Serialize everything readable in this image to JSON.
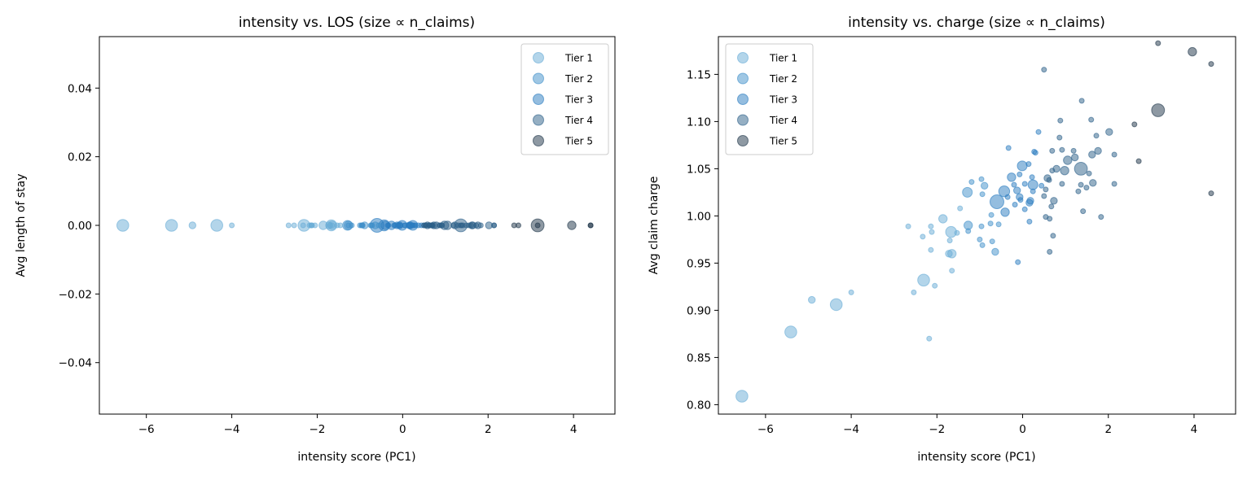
{
  "chart_data": [
    {
      "type": "scatter",
      "title": "intensity vs. LOS (size ∝ n_claims)",
      "xlabel": "intensity score (PC1)",
      "ylabel": "Avg length of stay",
      "xlim": [
        -7.1,
        4.97
      ],
      "ylim": [
        -0.055,
        0.055
      ],
      "xticks": [
        -6,
        -4,
        -2,
        0,
        2,
        4
      ],
      "xtick_labels": [
        "−6",
        "−4",
        "−2",
        "0",
        "2",
        "4"
      ],
      "yticks": [
        -0.04,
        -0.02,
        0,
        0.02,
        0.04
      ],
      "ytick_labels": [
        "−0.04",
        "−0.02",
        "0.00",
        "0.02",
        "0.04"
      ],
      "y_field": "los",
      "legend_position": "top-right",
      "grid": false
    },
    {
      "type": "scatter",
      "title": "intensity vs. charge (size ∝ n_claims)",
      "xlabel": "intensity score (PC1)",
      "ylabel": "Avg claim charge",
      "xlim": [
        -7.1,
        4.97
      ],
      "ylim": [
        0.79,
        1.19
      ],
      "xticks": [
        -6,
        -4,
        -2,
        0,
        2,
        4
      ],
      "xtick_labels": [
        "−6",
        "−4",
        "−2",
        "0",
        "2",
        "4"
      ],
      "yticks": [
        0.8,
        0.85,
        0.9,
        0.95,
        1.0,
        1.05,
        1.1,
        1.15
      ],
      "ytick_labels": [
        "0.80",
        "0.85",
        "0.90",
        "0.95",
        "1.00",
        "1.05",
        "1.10",
        "1.15"
      ],
      "y_field": "charge",
      "legend_position": "top-left",
      "grid": false
    }
  ],
  "legend": [
    "Tier 1",
    "Tier 2",
    "Tier 3",
    "Tier 4",
    "Tier 5"
  ],
  "tier_colors": [
    "#68acd6",
    "#3f8fca",
    "#2a7bbf",
    "#2b5f88",
    "#1d3347"
  ],
  "point_fields": [
    "intensity",
    "charge",
    "n_claims_rel",
    "tier"
  ],
  "los_value_all_points": 0,
  "points": [
    [
      3.16,
      1.183,
      1,
      5
    ],
    [
      3.96,
      1.174,
      3,
      5
    ],
    [
      4.4,
      1.161,
      1,
      5
    ],
    [
      0.5,
      1.155,
      1,
      4
    ],
    [
      3.16,
      1.112,
      7,
      5
    ],
    [
      1.38,
      1.122,
      1,
      4
    ],
    [
      0.88,
      1.101,
      1,
      4
    ],
    [
      1.6,
      1.102,
      1,
      4
    ],
    [
      2.02,
      1.089,
      2,
      4
    ],
    [
      2.61,
      1.097,
      1,
      5
    ],
    [
      0.37,
      1.089,
      1,
      3
    ],
    [
      0.86,
      1.083,
      1,
      4
    ],
    [
      1.72,
      1.085,
      1,
      4
    ],
    [
      -0.33,
      1.072,
      1,
      3
    ],
    [
      2.71,
      1.058,
      1,
      5
    ],
    [
      4.4,
      1.024,
      1,
      5
    ],
    [
      1.36,
      1.05,
      7,
      4
    ],
    [
      1.05,
      1.059,
      3,
      4
    ],
    [
      1.22,
      1.062,
      2,
      4
    ],
    [
      0.98,
      1.048,
      3,
      4
    ],
    [
      0.79,
      1.05,
      2,
      4
    ],
    [
      0.69,
      1.069,
      1,
      4
    ],
    [
      0.92,
      1.07,
      1,
      4
    ],
    [
      1.19,
      1.069,
      1,
      4
    ],
    [
      1.62,
      1.065,
      2,
      4
    ],
    [
      1.76,
      1.069,
      2,
      4
    ],
    [
      2.14,
      1.065,
      1,
      4
    ],
    [
      0.69,
      1.048,
      1,
      4
    ],
    [
      1.55,
      1.045,
      1,
      4
    ],
    [
      2.14,
      1.034,
      1,
      4
    ],
    [
      1.64,
      1.035,
      2,
      4
    ],
    [
      1.36,
      1.033,
      1,
      4
    ],
    [
      1.49,
      1.03,
      1,
      4
    ],
    [
      1.3,
      1.026,
      1,
      4
    ],
    [
      0.92,
      1.034,
      1,
      4
    ],
    [
      1.41,
      1.005,
      1,
      4
    ],
    [
      1.83,
      0.999,
      1,
      4
    ],
    [
      0.58,
      1.04,
      2,
      4
    ],
    [
      0.62,
      1.038,
      1,
      4
    ],
    [
      0.44,
      1.032,
      1,
      3
    ],
    [
      0.54,
      1.028,
      1,
      4
    ],
    [
      0.5,
      1.021,
      1,
      4
    ],
    [
      0.73,
      1.016,
      2,
      4
    ],
    [
      0.67,
      1.01,
      1,
      4
    ],
    [
      0.54,
      0.999,
      1,
      4
    ],
    [
      0.63,
      0.997,
      1,
      4
    ],
    [
      0.71,
      0.979,
      1,
      4
    ],
    [
      0.63,
      0.962,
      1,
      4
    ],
    [
      -0.01,
      1.053,
      4,
      3
    ],
    [
      0.14,
      1.055,
      1,
      3
    ],
    [
      0.27,
      1.068,
      1,
      3
    ],
    [
      0.3,
      1.067,
      1,
      3
    ],
    [
      -0.07,
      1.044,
      1,
      3
    ],
    [
      -0.26,
      1.041,
      3,
      3
    ],
    [
      0.24,
      1.033,
      4,
      3
    ],
    [
      0.22,
      1.041,
      1,
      3
    ],
    [
      0.05,
      1.034,
      1,
      3
    ],
    [
      0.24,
      1.026,
      1,
      3
    ],
    [
      -0.2,
      1.033,
      1,
      3
    ],
    [
      -0.13,
      1.027,
      2,
      3
    ],
    [
      -0.35,
      1.02,
      1,
      3
    ],
    [
      -0.07,
      1.02,
      2,
      3
    ],
    [
      -0.05,
      1.017,
      1,
      3
    ],
    [
      -0.43,
      1.026,
      5,
      3
    ],
    [
      -0.6,
      1.015,
      8,
      3
    ],
    [
      -0.41,
      1.004,
      3,
      3
    ],
    [
      0.18,
      1.016,
      2,
      3
    ],
    [
      0.16,
      1.014,
      2,
      3
    ],
    [
      -0.18,
      1.012,
      1,
      3
    ],
    [
      0.05,
      1.007,
      1,
      3
    ],
    [
      -0.73,
      1.001,
      1,
      2
    ],
    [
      -0.75,
      0.992,
      1,
      2
    ],
    [
      -0.56,
      0.991,
      1,
      2
    ],
    [
      0.16,
      0.994,
      1,
      3
    ],
    [
      -0.96,
      0.989,
      1,
      2
    ],
    [
      -0.94,
      1.023,
      1,
      2
    ],
    [
      -0.96,
      1.039,
      1,
      2
    ],
    [
      -0.89,
      1.032,
      2,
      2
    ],
    [
      -1.19,
      1.036,
      1,
      2
    ],
    [
      -1.29,
      1.025,
      4,
      2
    ],
    [
      -1.46,
      1.008,
      1,
      1
    ],
    [
      -1.86,
      0.997,
      3,
      1
    ],
    [
      -1.27,
      0.99,
      3,
      2
    ],
    [
      -1.27,
      0.984,
      1,
      2
    ],
    [
      -1.67,
      0.983,
      5,
      1
    ],
    [
      -1.53,
      0.982,
      1,
      1
    ],
    [
      -2.14,
      0.989,
      1,
      1
    ],
    [
      -2.12,
      0.983,
      1,
      1
    ],
    [
      -2.67,
      0.989,
      1,
      1
    ],
    [
      -2.33,
      0.978,
      1,
      1
    ],
    [
      -1.7,
      0.974,
      1,
      1
    ],
    [
      -2.14,
      0.964,
      1,
      1
    ],
    [
      -1.65,
      0.96,
      3,
      1
    ],
    [
      -1.72,
      0.96,
      2,
      1
    ],
    [
      -1.65,
      0.942,
      1,
      1
    ],
    [
      -1.0,
      0.975,
      1,
      2
    ],
    [
      -0.94,
      0.969,
      1,
      2
    ],
    [
      -0.71,
      0.973,
      1,
      2
    ],
    [
      -0.64,
      0.962,
      2,
      2
    ],
    [
      -0.11,
      0.951,
      1,
      3
    ],
    [
      -2.31,
      0.932,
      6,
      1
    ],
    [
      -2.05,
      0.926,
      1,
      1
    ],
    [
      -2.54,
      0.919,
      1,
      1
    ],
    [
      -2.18,
      0.87,
      1,
      1
    ],
    [
      -6.55,
      0.809,
      6,
      1
    ],
    [
      -5.41,
      0.877,
      6,
      1
    ],
    [
      -4.92,
      0.911,
      2,
      1
    ],
    [
      -4.35,
      0.906,
      6,
      1
    ],
    [
      -4.0,
      0.919,
      1,
      1
    ]
  ]
}
